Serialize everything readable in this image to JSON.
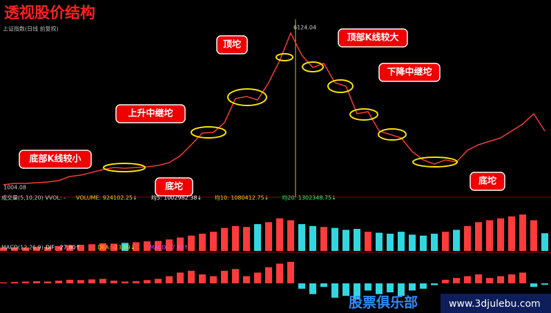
{
  "header": {
    "title": "透视股价结构",
    "subtitle": "上证指数(日线 前复权)"
  },
  "chart_data": [
    {
      "type": "line",
      "name": "price",
      "values": [
        1004.08,
        1050,
        1050,
        1074,
        1097,
        1144,
        1283,
        1330,
        1423,
        1516,
        1586,
        1562,
        1586,
        1609,
        1656,
        1749,
        1981,
        2354,
        2749,
        2773,
        3098,
        3913,
        3983,
        3866,
        4448,
        5193,
        6124.04,
        5379,
        4960,
        5100,
        4448,
        4332,
        3401,
        3471,
        2819,
        2703,
        2586,
        2121,
        1842,
        1702,
        1842,
        1772,
        2168,
        2354,
        2470,
        2586,
        2819,
        3051,
        3401,
        2819
      ],
      "color": "#ff3b3b",
      "ylim": [
        678,
        6356
      ],
      "point_labels": [
        {
          "index": 0,
          "label": "1004.08"
        },
        {
          "index": 26,
          "label": "6124.04"
        }
      ],
      "annotations": [
        "底部K线较小",
        "底坨",
        "上升中继坨",
        "顶坨",
        "顶部K线较大",
        "下降中继坨",
        "底坨"
      ]
    },
    {
      "type": "bar",
      "name": "volume",
      "title": "成交量(5,10,20) VVOL: -",
      "stats": [
        {
          "text": "VOLUME: 924102.25↓",
          "color": "#ffd400"
        },
        {
          "text": "均5: 1002982.38↓",
          "color": "#ffffff"
        },
        {
          "text": "均10: 1080412.75↓",
          "color": "#ffd400"
        },
        {
          "text": "均20: 1302348.75↓",
          "color": "#33ff66"
        }
      ],
      "values": [
        180000,
        200000,
        190000,
        220000,
        210000,
        260000,
        300000,
        320000,
        350000,
        400000,
        380000,
        420000,
        450000,
        500000,
        520000,
        600000,
        700000,
        800000,
        900000,
        1000000,
        1200000,
        1300000,
        1250000,
        1400000,
        1500000,
        1700000,
        1600000,
        1400000,
        1300000,
        1250000,
        1200000,
        1100000,
        1150000,
        1000000,
        950000,
        900000,
        1000000,
        850000,
        800000,
        900000,
        1000000,
        1100000,
        1300000,
        1500000,
        1600000,
        1700000,
        1800000,
        1900000,
        1600000,
        924102.25
      ],
      "ylim": [
        0,
        2300000
      ],
      "up_color": "#ff3b3b",
      "down_color": "#33d6e0"
    },
    {
      "type": "bar",
      "name": "macd",
      "title": "MACD(12,26,9)",
      "stats": [
        {
          "text": "DIF: -27.80↑",
          "color": "#ffffff"
        },
        {
          "text": "DEA: -23.89↓",
          "color": "#ffd400"
        },
        {
          "text": "MACD: -7.82↑",
          "color": "#ff44ff"
        }
      ],
      "values": [
        5,
        8,
        10,
        12,
        10,
        15,
        20,
        18,
        22,
        25,
        15,
        10,
        12,
        18,
        25,
        40,
        60,
        70,
        50,
        40,
        70,
        80,
        40,
        60,
        90,
        110,
        120,
        -30,
        -60,
        -20,
        -80,
        -70,
        -90,
        -40,
        -60,
        -50,
        -70,
        -40,
        -30,
        -10,
        20,
        30,
        40,
        50,
        30,
        40,
        50,
        60,
        -20,
        -7.82
      ],
      "ylim": [
        -150,
        150
      ],
      "up_color": "#ff3b3b",
      "down_color": "#33d6e0"
    }
  ],
  "watermark": {
    "brand": "股票俱乐部",
    "url": "www.3djulebu.com"
  }
}
